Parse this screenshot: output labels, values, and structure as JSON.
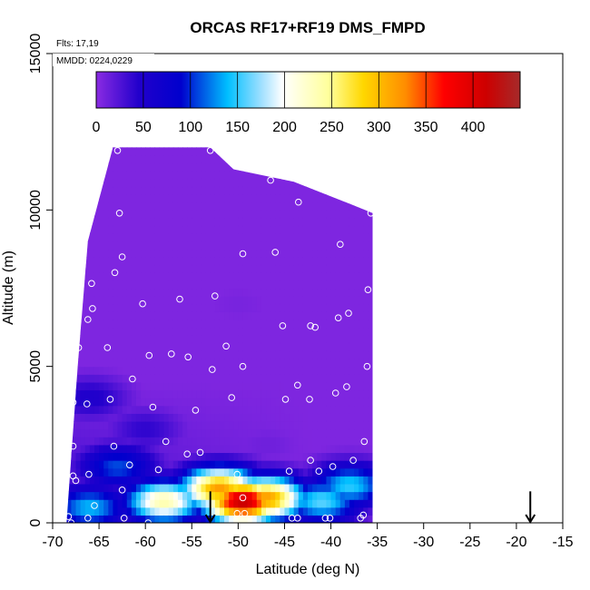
{
  "chart_data": {
    "type": "heatmap",
    "title": "ORCAS RF17+RF19 DMS_FMPD",
    "xlabel": "Latitude (deg N)",
    "ylabel": "Altitude (m)",
    "xlim": [
      -70,
      -15
    ],
    "ylim": [
      0,
      15000
    ],
    "x_ticks": [
      "-70",
      "-65",
      "-60",
      "-55",
      "-50",
      "-45",
      "-40",
      "-35",
      "-30",
      "-25",
      "-20",
      "-15"
    ],
    "y_ticks": [
      "0",
      "5000",
      "10000",
      "15000"
    ],
    "annotations": {
      "flights": "Flts: 17,19",
      "dates": "MMDD: 0224,0229"
    },
    "colorbar": {
      "range": [
        0,
        450
      ],
      "tick_labels": [
        "0",
        "50",
        "100",
        "150",
        "200",
        "250",
        "300",
        "350",
        "400"
      ],
      "colors": [
        "#8a2be2",
        "#0000cd",
        "#00bfff",
        "#ffffff",
        "#ffd700",
        "#ff8c00",
        "#ff0000",
        "#cd0000",
        "#a52a2a"
      ]
    },
    "grid": false,
    "field_extent": {
      "lat_range": [
        -68.5,
        -35.5
      ],
      "top_altitude": [
        [
          -68.5,
          0
        ],
        [
          -67.3,
          5000
        ],
        [
          -66.2,
          9000
        ],
        [
          -63.5,
          12000
        ],
        [
          -53,
          12000
        ],
        [
          -50.5,
          11300
        ],
        [
          -44,
          10900
        ],
        [
          -38,
          10200
        ],
        [
          -35.5,
          9900
        ]
      ]
    },
    "field_features": [
      {
        "lat": -58,
        "alt": 700,
        "value": 240
      },
      {
        "lat": -63,
        "alt": 1800,
        "value": 110
      },
      {
        "lat": -52,
        "alt": 1100,
        "value": 320
      },
      {
        "lat": -49.5,
        "alt": 700,
        "value": 420
      },
      {
        "lat": -47,
        "alt": 800,
        "value": 320
      },
      {
        "lat": -41,
        "alt": 700,
        "value": 160
      },
      {
        "lat": -38,
        "alt": 1200,
        "value": 150
      },
      {
        "lat": -66,
        "alt": 500,
        "value": 140
      },
      {
        "lat": -60,
        "alt": 3000,
        "value": 40
      },
      {
        "lat": -66,
        "alt": 4000,
        "value": 50
      },
      {
        "lat": -50,
        "alt": 7000,
        "value": 8
      },
      {
        "lat": -47,
        "alt": 2500,
        "value": 12
      }
    ],
    "observation_points": [
      [
        -63,
        11900
      ],
      [
        -53,
        11900
      ],
      [
        -46.5,
        10950
      ],
      [
        -43.5,
        10250
      ],
      [
        -35.7,
        9900
      ],
      [
        -62.8,
        9900
      ],
      [
        -62.5,
        8500
      ],
      [
        -63.3,
        8000
      ],
      [
        -49.5,
        8600
      ],
      [
        -46,
        8650
      ],
      [
        -39,
        8900
      ],
      [
        -65.8,
        7650
      ],
      [
        -36,
        7450
      ],
      [
        -52.5,
        7250
      ],
      [
        -56.3,
        7150
      ],
      [
        -60.3,
        7000
      ],
      [
        -65.7,
        6850
      ],
      [
        -38.1,
        6700
      ],
      [
        -39.2,
        6550
      ],
      [
        -66.2,
        6500
      ],
      [
        -45.2,
        6300
      ],
      [
        -42.2,
        6300
      ],
      [
        -41.7,
        6250
      ],
      [
        -51.3,
        5650
      ],
      [
        -67.2,
        5600
      ],
      [
        -64.1,
        5600
      ],
      [
        -57.2,
        5400
      ],
      [
        -59.6,
        5350
      ],
      [
        -55.4,
        5300
      ],
      [
        -36.1,
        5000
      ],
      [
        -49.5,
        5000
      ],
      [
        -52.8,
        4900
      ],
      [
        -61.4,
        4600
      ],
      [
        -43.6,
        4400
      ],
      [
        -38.3,
        4350
      ],
      [
        -39.5,
        4150
      ],
      [
        -50.7,
        4000
      ],
      [
        -44.9,
        3950
      ],
      [
        -42.3,
        3950
      ],
      [
        -63.8,
        3950
      ],
      [
        -67.8,
        3850
      ],
      [
        -66.3,
        3800
      ],
      [
        -59.2,
        3700
      ],
      [
        -54.6,
        3600
      ],
      [
        -36.4,
        2600
      ],
      [
        -57.8,
        2600
      ],
      [
        -63.4,
        2450
      ],
      [
        -67.8,
        2450
      ],
      [
        -55.5,
        2200
      ],
      [
        -54.1,
        2250
      ],
      [
        -42.2,
        2000
      ],
      [
        -37.6,
        2000
      ],
      [
        -61.7,
        1850
      ],
      [
        -39.8,
        1800
      ],
      [
        -44.5,
        1650
      ],
      [
        -41.3,
        1650
      ],
      [
        -58.6,
        1700
      ],
      [
        -67.8,
        1500
      ],
      [
        -66.1,
        1550
      ],
      [
        -50.1,
        1550
      ],
      [
        -67.5,
        1350
      ],
      [
        -62.5,
        1050
      ],
      [
        -49.5,
        800
      ],
      [
        -65.5,
        550
      ],
      [
        -68.3,
        200
      ],
      [
        -66.2,
        150
      ],
      [
        -62.3,
        150
      ],
      [
        -59.7,
        0
      ],
      [
        -50.1,
        300
      ],
      [
        -49.3,
        300
      ],
      [
        -44.2,
        150
      ],
      [
        -43.6,
        150
      ],
      [
        -40.6,
        150
      ],
      [
        -40.1,
        150
      ],
      [
        -36.8,
        150
      ],
      [
        -36.5,
        250
      ],
      [
        -68,
        0
      ]
    ],
    "arrows": [
      {
        "lat": -53,
        "alt_from": 600,
        "alt_to": 0
      },
      {
        "lat": -18.5,
        "alt_from": 600,
        "alt_to": 0
      }
    ]
  }
}
